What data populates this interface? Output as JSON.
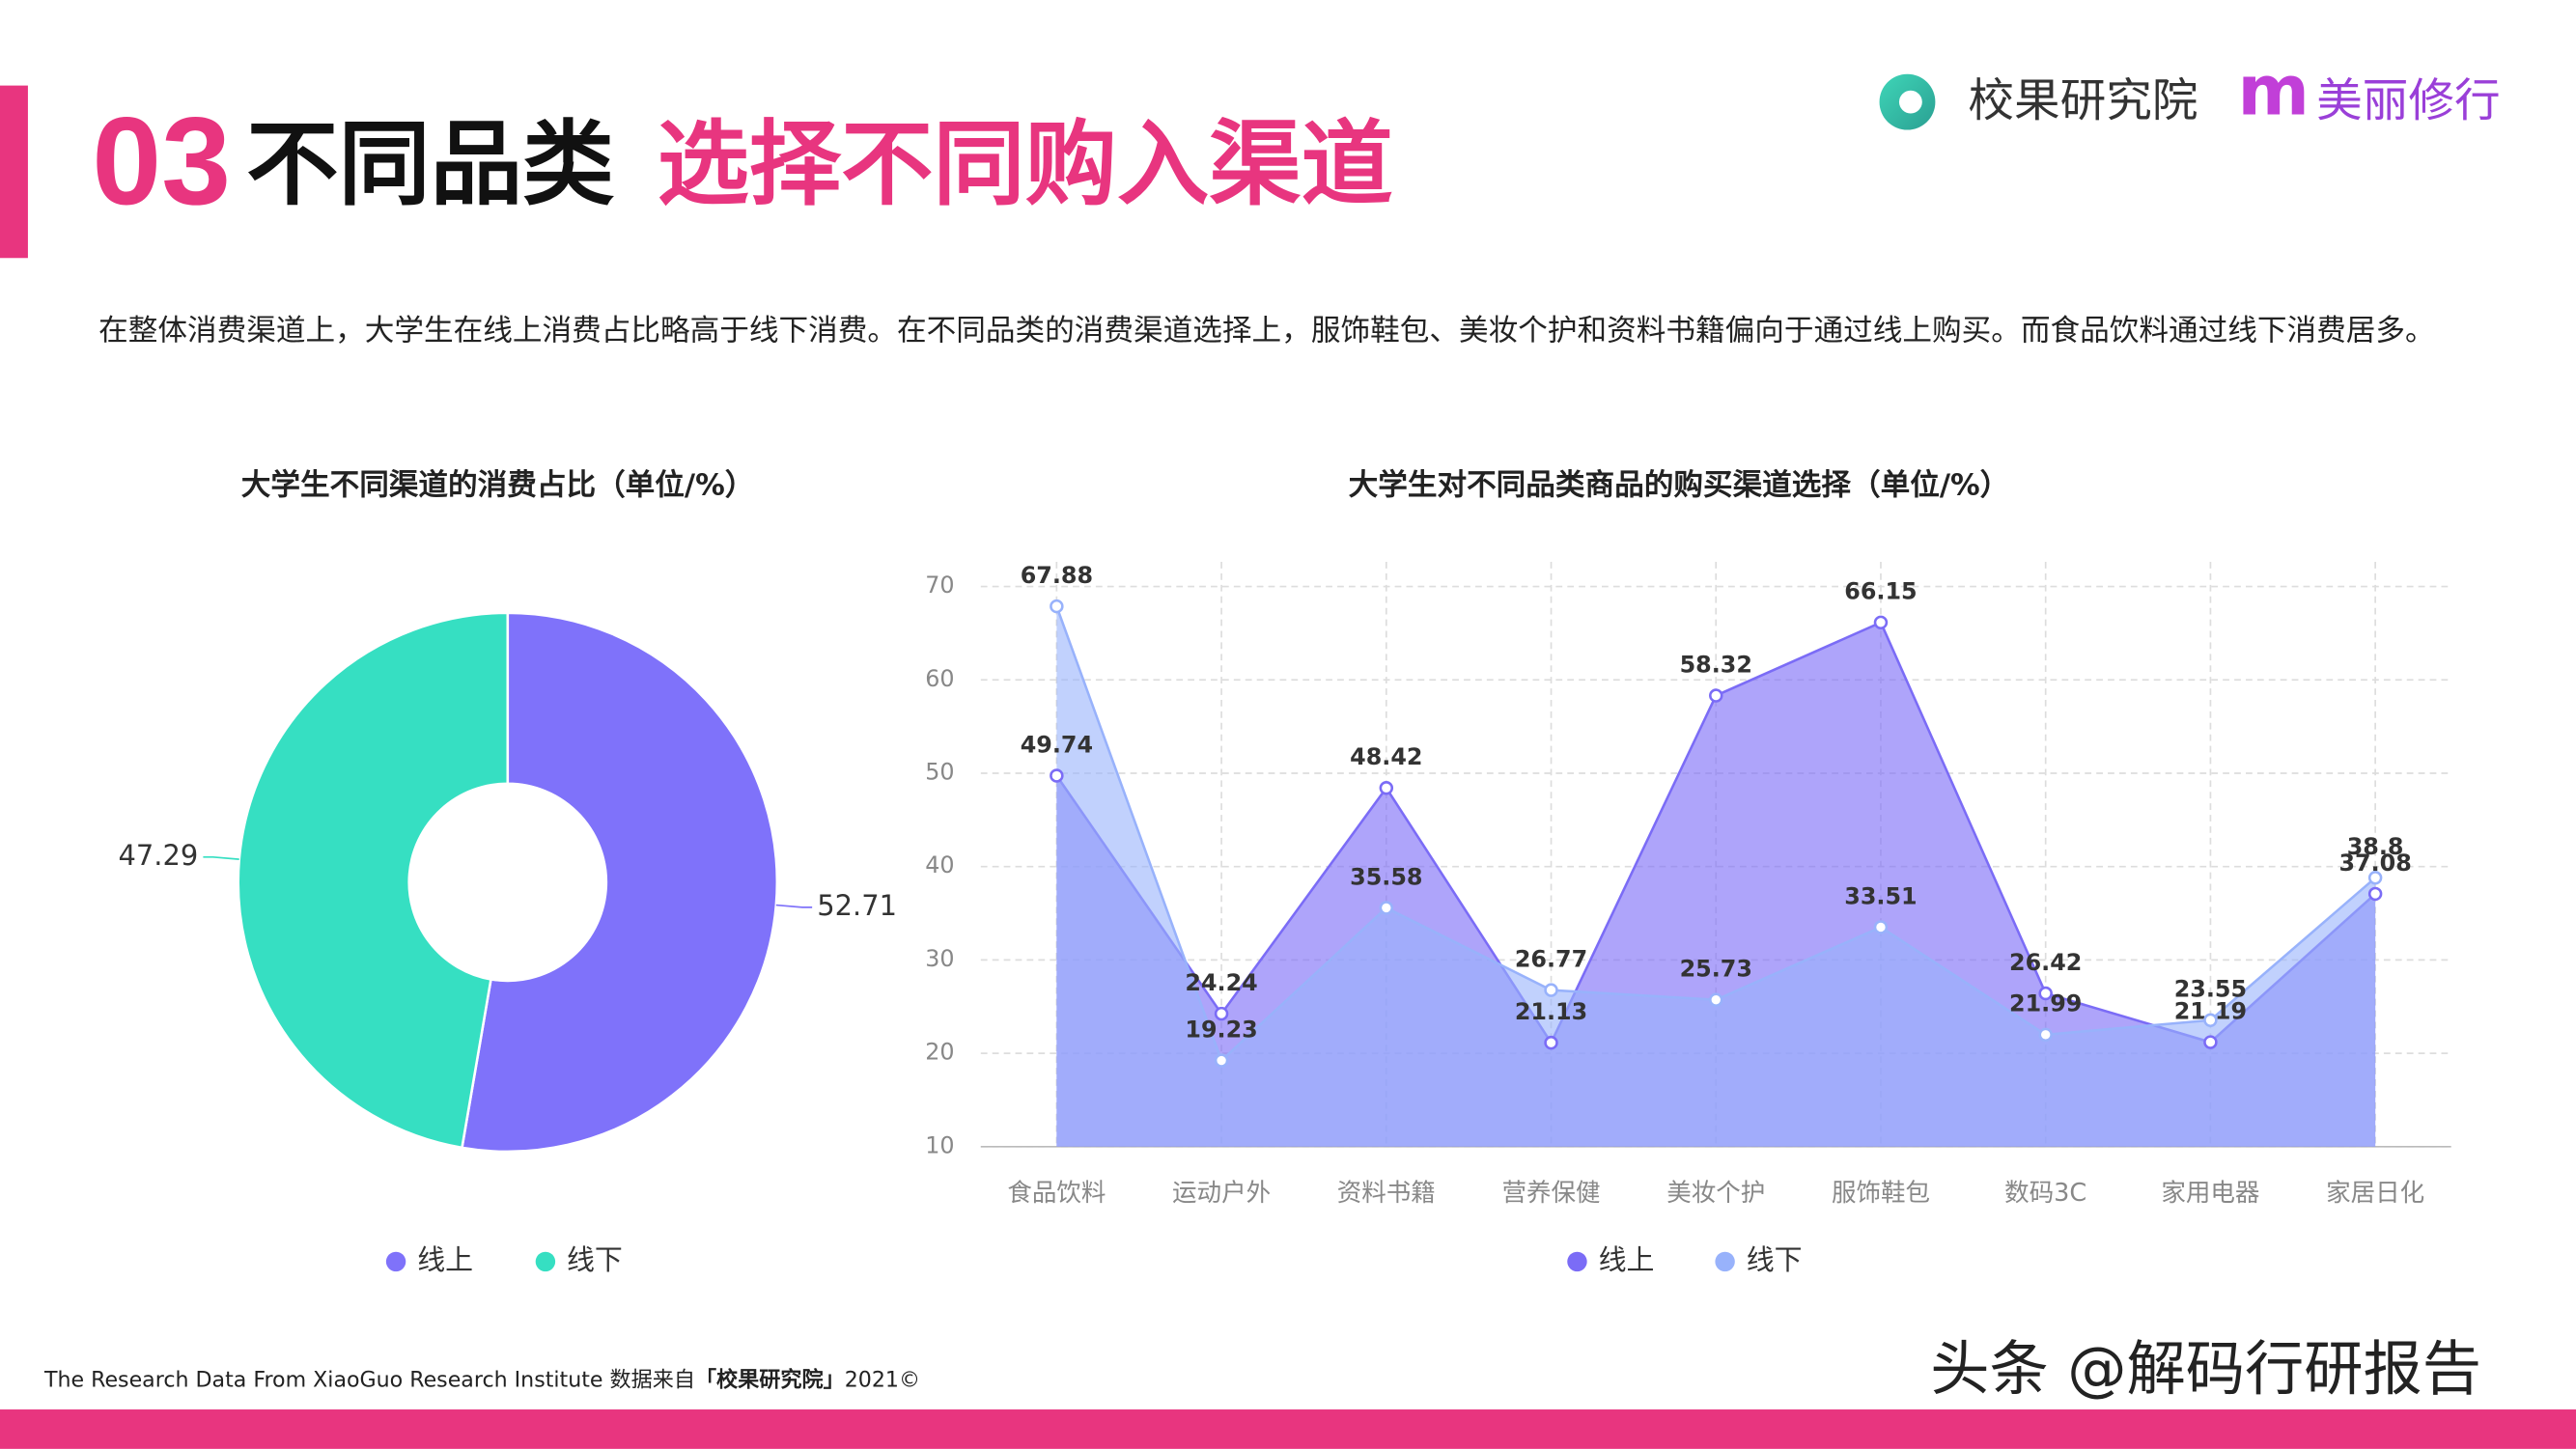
{
  "header": {
    "number": "03",
    "title_black": "不同品类",
    "title_pink": "选择不同购入渠道",
    "logo_name": "校果研究院",
    "logo_m": "m",
    "logo_partner": "美丽修行"
  },
  "description": "在整体消费渠道上，大学生在线上消费占比略高于线下消费。在不同品类的消费渠道选择上，服饰鞋包、美妆个护和资料书籍偏向于通过线上购买。而食品饮料通过线下消费居多。",
  "chart_data": [
    {
      "type": "donut",
      "title": "大学生不同渠道的消费占比（单位/%）",
      "categories": [
        "线上",
        "线下"
      ],
      "values": [
        52.71,
        47.29
      ],
      "colors": [
        "#7f72fa",
        "#36dfc2"
      ]
    },
    {
      "type": "area",
      "title": "大学生对不同品类商品的购买渠道选择（单位/%）",
      "categories": [
        "食品饮料",
        "运动户外",
        "资料书籍",
        "营养保健",
        "美妆个护",
        "服饰鞋包",
        "数码3C",
        "家用电器",
        "家居日化"
      ],
      "series": [
        {
          "name": "线上",
          "color": "#7b6cf6",
          "values": [
            49.74,
            24.24,
            48.42,
            21.13,
            58.32,
            66.15,
            26.42,
            21.19,
            37.08
          ]
        },
        {
          "name": "线下",
          "color": "#98b2fb",
          "values": [
            67.88,
            19.23,
            35.58,
            26.77,
            25.73,
            33.51,
            21.99,
            23.55,
            38.8
          ]
        }
      ],
      "ylim": [
        10,
        70
      ],
      "yticks": [
        10,
        20,
        30,
        40,
        50,
        60,
        70
      ],
      "grid": true
    }
  ],
  "footer": {
    "source_prefix": "The Research Data From XiaoGuo Research Institute 数据来自",
    "source_bold": "「校果研究院」",
    "source_suffix": "2021©",
    "watermark": "头条 @解码行研报告"
  }
}
